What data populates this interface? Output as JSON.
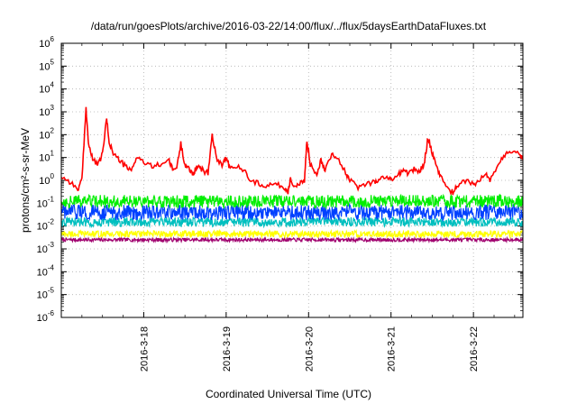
{
  "chart_data": {
    "type": "line",
    "title": "/data/run/goesPlots/archive/2016-03-22/14:00/flux/../flux/5daysEarthDataFluxes.txt",
    "xlabel": "Coordinated Universal Time (UTC)",
    "ylabel": "protons/cm²-s-sr-MeV",
    "x_tick_labels": [
      "2016-3-18",
      "2016-3-19",
      "2016-3-20",
      "2016-3-21",
      "2016-3-22"
    ],
    "x_ticks_day_offset": [
      1,
      2,
      3,
      4,
      5
    ],
    "xlim_day_offset": [
      0,
      5.6
    ],
    "y_scale": "log",
    "ylim": [
      1e-06,
      1000000.0
    ],
    "y_ticks": [
      1e-06,
      1e-05,
      0.0001,
      0.001,
      0.01,
      0.1,
      1.0,
      10.0,
      100.0,
      1000.0,
      10000.0,
      100000.0,
      1000000.0
    ],
    "grid": true,
    "series": [
      {
        "color": "#ff0000",
        "points": [
          [
            0.0,
            1.5
          ],
          [
            0.1,
            0.9
          ],
          [
            0.2,
            0.4
          ],
          [
            0.25,
            1.0
          ],
          [
            0.3,
            1500
          ],
          [
            0.33,
            40
          ],
          [
            0.38,
            8
          ],
          [
            0.45,
            5
          ],
          [
            0.5,
            15
          ],
          [
            0.55,
            500
          ],
          [
            0.58,
            50
          ],
          [
            0.63,
            15
          ],
          [
            0.7,
            8
          ],
          [
            0.78,
            4
          ],
          [
            0.85,
            2.5
          ],
          [
            0.92,
            12
          ],
          [
            1.0,
            6
          ],
          [
            1.1,
            4
          ],
          [
            1.2,
            5
          ],
          [
            1.3,
            8
          ],
          [
            1.35,
            3
          ],
          [
            1.4,
            3.5
          ],
          [
            1.45,
            40
          ],
          [
            1.5,
            5
          ],
          [
            1.55,
            3
          ],
          [
            1.6,
            2
          ],
          [
            1.65,
            4
          ],
          [
            1.7,
            3
          ],
          [
            1.78,
            2
          ],
          [
            1.83,
            100
          ],
          [
            1.88,
            10
          ],
          [
            1.95,
            5
          ],
          [
            2.0,
            10
          ],
          [
            2.05,
            3
          ],
          [
            2.15,
            4
          ],
          [
            2.25,
            2
          ],
          [
            2.3,
            1.0
          ],
          [
            2.4,
            0.7
          ],
          [
            2.5,
            0.6
          ],
          [
            2.6,
            0.7
          ],
          [
            2.7,
            0.5
          ],
          [
            2.75,
            0.3
          ],
          [
            2.78,
            1.2
          ],
          [
            2.83,
            0.5
          ],
          [
            2.88,
            0.6
          ],
          [
            2.95,
            1.0
          ],
          [
            2.98,
            60
          ],
          [
            3.02,
            5
          ],
          [
            3.1,
            2
          ],
          [
            3.15,
            8
          ],
          [
            3.2,
            3
          ],
          [
            3.28,
            15
          ],
          [
            3.35,
            10
          ],
          [
            3.45,
            2
          ],
          [
            3.5,
            1.0
          ],
          [
            3.6,
            0.5
          ],
          [
            3.7,
            0.7
          ],
          [
            3.8,
            0.9
          ],
          [
            3.85,
            1.0
          ],
          [
            3.95,
            1.5
          ],
          [
            4.0,
            1.0
          ],
          [
            4.1,
            2
          ],
          [
            4.15,
            3
          ],
          [
            4.2,
            2
          ],
          [
            4.28,
            3
          ],
          [
            4.35,
            2.5
          ],
          [
            4.4,
            5
          ],
          [
            4.45,
            80
          ],
          [
            4.5,
            15
          ],
          [
            4.55,
            4
          ],
          [
            4.6,
            1.5
          ],
          [
            4.7,
            0.4
          ],
          [
            4.75,
            0.3
          ],
          [
            4.8,
            0.5
          ],
          [
            4.9,
            1.0
          ],
          [
            5.0,
            0.7
          ],
          [
            5.05,
            0.8
          ],
          [
            5.15,
            2
          ],
          [
            5.2,
            1.0
          ],
          [
            5.3,
            5
          ],
          [
            5.38,
            12
          ],
          [
            5.45,
            20
          ],
          [
            5.55,
            15
          ],
          [
            5.6,
            8
          ]
        ]
      },
      {
        "color": "#00ee00",
        "level": 0.12,
        "spread": 1.9
      },
      {
        "color": "#0040ff",
        "level": 0.04,
        "spread": 2.2
      },
      {
        "color": "#00bfbf",
        "level": 0.015,
        "spread": 1.6
      },
      {
        "color": "#ffff00",
        "level": 0.0045,
        "spread": 1.4
      },
      {
        "color": "#a0006e",
        "level": 0.0025,
        "spread": 1.2
      }
    ]
  }
}
